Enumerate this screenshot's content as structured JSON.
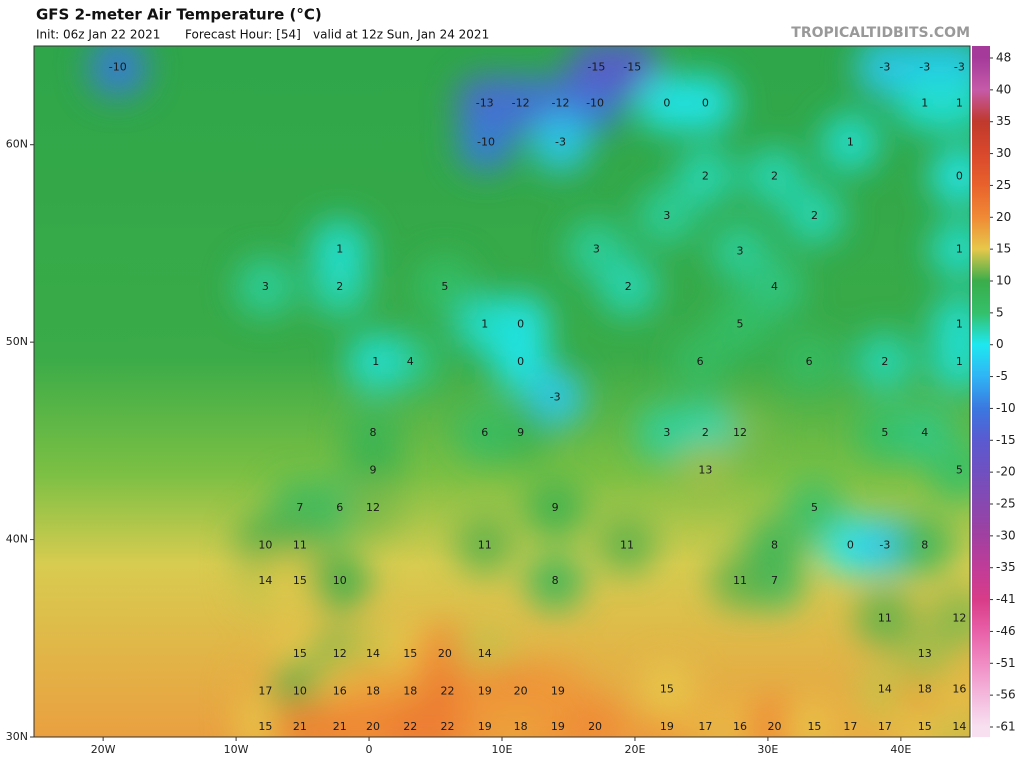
{
  "header": {
    "title": "GFS 2-meter Air Temperature (°C)",
    "init": "Init: 06z Jan 22 2021",
    "forecast_hour": "Forecast Hour: [54]",
    "valid": "valid at 12z Sun, Jan 24 2021",
    "site": "TROPICALTIDBITS.COM"
  },
  "map": {
    "xlim": [
      -25.2,
      45.2
    ],
    "ylim": [
      30,
      65
    ],
    "xticks": [
      {
        "value": -20,
        "label": "20W"
      },
      {
        "value": -10,
        "label": "10W"
      },
      0,
      {
        "value": 10,
        "label": "10E"
      },
      {
        "value": 20,
        "label": "20E"
      },
      {
        "value": 30,
        "label": "30E"
      },
      {
        "value": 40,
        "label": "40E"
      }
    ],
    "yticks": [
      {
        "value": 30,
        "label": "30N"
      },
      {
        "value": 40,
        "label": "40N"
      },
      {
        "value": 50,
        "label": "50N"
      },
      {
        "value": 60,
        "label": "60N"
      }
    ],
    "points": [
      {
        "lon": -18.9,
        "lat": 63.9,
        "value": -10
      },
      {
        "lon": 8.7,
        "lat": 62.1,
        "value": -13
      },
      {
        "lon": 11.4,
        "lat": 62.1,
        "value": -12
      },
      {
        "lon": 14.4,
        "lat": 62.1,
        "value": -12
      },
      {
        "lon": 17.0,
        "lat": 62.1,
        "value": -10
      },
      {
        "lon": 17.1,
        "lat": 63.9,
        "value": -15
      },
      {
        "lon": 19.8,
        "lat": 63.9,
        "value": -15
      },
      {
        "lon": 8.8,
        "lat": 60.1,
        "value": -10
      },
      {
        "lon": 14.4,
        "lat": 60.1,
        "value": -3
      },
      {
        "lon": 22.4,
        "lat": 62.1,
        "value": 0
      },
      {
        "lon": 25.3,
        "lat": 62.1,
        "value": 0
      },
      {
        "lon": 38.8,
        "lat": 63.9,
        "value": -3
      },
      {
        "lon": 41.8,
        "lat": 63.9,
        "value": -3
      },
      {
        "lon": 44.4,
        "lat": 63.9,
        "value": -3
      },
      {
        "lon": 41.8,
        "lat": 62.1,
        "value": 1
      },
      {
        "lon": 36.2,
        "lat": 60.1,
        "value": 1
      },
      {
        "lon": 30.5,
        "lat": 58.4,
        "value": 2
      },
      {
        "lon": 33.5,
        "lat": 56.4,
        "value": 2
      },
      {
        "lon": 27.9,
        "lat": 54.6,
        "value": 3
      },
      {
        "lon": 30.5,
        "lat": 52.8,
        "value": 4
      },
      {
        "lon": 27.9,
        "lat": 50.9,
        "value": 5
      },
      {
        "lon": 33.1,
        "lat": 49.0,
        "value": 6
      },
      {
        "lon": 38.8,
        "lat": 49.0,
        "value": 2
      },
      {
        "lon": 24.9,
        "lat": 49.0,
        "value": 6
      },
      {
        "lon": 17.1,
        "lat": 54.7,
        "value": 3
      },
      {
        "lon": 19.5,
        "lat": 52.8,
        "value": 2
      },
      {
        "lon": 11.4,
        "lat": 50.9,
        "value": 0
      },
      {
        "lon": 11.4,
        "lat": 49.0,
        "value": 0
      },
      {
        "lon": 14.0,
        "lat": 47.2,
        "value": -3
      },
      {
        "lon": 8.7,
        "lat": 50.9,
        "value": 1
      },
      {
        "lon": 5.7,
        "lat": 52.8,
        "value": 5
      },
      {
        "lon": 3.1,
        "lat": 49.0,
        "value": 4
      },
      {
        "lon": 0.5,
        "lat": 49.0,
        "value": 1
      },
      {
        "lon": 0.3,
        "lat": 45.4,
        "value": 8
      },
      {
        "lon": 0.3,
        "lat": 43.5,
        "value": 9
      },
      {
        "lon": -2.2,
        "lat": 41.6,
        "value": 6
      },
      {
        "lon": -5.2,
        "lat": 41.6,
        "value": 7
      },
      {
        "lon": -7.8,
        "lat": 39.7,
        "value": 10
      },
      {
        "lon": -5.2,
        "lat": 39.7,
        "value": 11
      },
      {
        "lon": -7.8,
        "lat": 37.9,
        "value": 14
      },
      {
        "lon": -5.2,
        "lat": 37.9,
        "value": 15
      },
      {
        "lon": -2.2,
        "lat": 37.9,
        "value": 10
      },
      {
        "lon": 0.3,
        "lat": 41.6,
        "value": 12
      },
      {
        "lon": -5.2,
        "lat": 34.2,
        "value": 15
      },
      {
        "lon": -2.2,
        "lat": 34.2,
        "value": 12
      },
      {
        "lon": 0.3,
        "lat": 34.2,
        "value": 14
      },
      {
        "lon": 3.1,
        "lat": 34.2,
        "value": 15
      },
      {
        "lon": 5.7,
        "lat": 34.2,
        "value": 20
      },
      {
        "lon": 8.7,
        "lat": 34.2,
        "value": 14
      },
      {
        "lon": -7.8,
        "lat": 32.3,
        "value": 17
      },
      {
        "lon": -5.2,
        "lat": 32.3,
        "value": 10
      },
      {
        "lon": -2.2,
        "lat": 32.3,
        "value": 16
      },
      {
        "lon": 0.3,
        "lat": 32.3,
        "value": 18
      },
      {
        "lon": 3.1,
        "lat": 32.3,
        "value": 18
      },
      {
        "lon": 5.9,
        "lat": 32.3,
        "value": 22
      },
      {
        "lon": 8.7,
        "lat": 32.3,
        "value": 19
      },
      {
        "lon": 11.4,
        "lat": 32.3,
        "value": 20
      },
      {
        "lon": 14.2,
        "lat": 32.3,
        "value": 19
      },
      {
        "lon": -7.8,
        "lat": 30.5,
        "value": 15
      },
      {
        "lon": -5.2,
        "lat": 30.5,
        "value": 21
      },
      {
        "lon": -2.2,
        "lat": 30.5,
        "value": 21
      },
      {
        "lon": 0.3,
        "lat": 30.5,
        "value": 20
      },
      {
        "lon": 3.1,
        "lat": 30.5,
        "value": 22
      },
      {
        "lon": 5.9,
        "lat": 30.5,
        "value": 22
      },
      {
        "lon": 8.7,
        "lat": 30.5,
        "value": 19
      },
      {
        "lon": 11.4,
        "lat": 30.5,
        "value": 18
      },
      {
        "lon": 14.2,
        "lat": 30.5,
        "value": 19
      },
      {
        "lon": 17.0,
        "lat": 30.5,
        "value": 20
      },
      {
        "lon": 22.4,
        "lat": 30.5,
        "value": 19
      },
      {
        "lon": 25.3,
        "lat": 30.5,
        "value": 17
      },
      {
        "lon": 27.9,
        "lat": 30.5,
        "value": 16
      },
      {
        "lon": 30.5,
        "lat": 30.5,
        "value": 20
      },
      {
        "lon": 33.5,
        "lat": 30.5,
        "value": 15
      },
      {
        "lon": 36.2,
        "lat": 30.5,
        "value": 17
      },
      {
        "lon": 38.8,
        "lat": 30.5,
        "value": 17
      },
      {
        "lon": 41.8,
        "lat": 30.5,
        "value": 15
      },
      {
        "lon": 44.4,
        "lat": 30.5,
        "value": 14
      },
      {
        "lon": 22.4,
        "lat": 32.4,
        "value": 15
      },
      {
        "lon": 38.8,
        "lat": 32.4,
        "value": 14
      },
      {
        "lon": 41.8,
        "lat": 32.4,
        "value": 18
      },
      {
        "lon": 44.4,
        "lat": 32.4,
        "value": 16
      },
      {
        "lon": 41.8,
        "lat": 34.2,
        "value": 13
      },
      {
        "lon": 38.8,
        "lat": 36.0,
        "value": 11
      },
      {
        "lon": 44.4,
        "lat": 36.0,
        "value": 12
      },
      {
        "lon": 30.5,
        "lat": 37.9,
        "value": 7
      },
      {
        "lon": 27.9,
        "lat": 37.9,
        "value": 11
      },
      {
        "lon": 36.2,
        "lat": 39.7,
        "value": 0
      },
      {
        "lon": 38.8,
        "lat": 39.7,
        "value": -3
      },
      {
        "lon": 41.8,
        "lat": 39.7,
        "value": 8
      },
      {
        "lon": 30.5,
        "lat": 39.7,
        "value": 8
      },
      {
        "lon": 33.5,
        "lat": 41.6,
        "value": 5
      },
      {
        "lon": 44.4,
        "lat": 43.5,
        "value": 5
      },
      {
        "lon": 38.8,
        "lat": 45.4,
        "value": 5
      },
      {
        "lon": 41.8,
        "lat": 45.4,
        "value": 4
      },
      {
        "lon": 27.9,
        "lat": 45.4,
        "value": 12
      },
      {
        "lon": 25.3,
        "lat": 45.4,
        "value": 2
      },
      {
        "lon": 22.4,
        "lat": 45.4,
        "value": 3
      },
      {
        "lon": 11.4,
        "lat": 45.4,
        "value": 9
      },
      {
        "lon": 8.7,
        "lat": 45.4,
        "value": 6
      },
      {
        "lon": 14.0,
        "lat": 37.9,
        "value": 8
      },
      {
        "lon": 19.4,
        "lat": 39.7,
        "value": 11
      },
      {
        "lon": 8.7,
        "lat": 39.7,
        "value": 11
      },
      {
        "lon": 14.0,
        "lat": 41.6,
        "value": 9
      },
      {
        "lon": 25.3,
        "lat": 43.5,
        "value": 13
      },
      {
        "lon": 44.4,
        "lat": 49.0,
        "value": 1
      },
      {
        "lon": 44.4,
        "lat": 50.9,
        "value": 1
      },
      {
        "lon": 44.4,
        "lat": 54.7,
        "value": 1
      },
      {
        "lon": 44.4,
        "lat": 58.4,
        "value": 0
      },
      {
        "lon": 44.4,
        "lat": 62.1,
        "value": 1
      },
      {
        "lon": -7.8,
        "lat": 52.8,
        "value": 3
      },
      {
        "lon": -2.2,
        "lat": 52.8,
        "value": 2
      },
      {
        "lon": -2.2,
        "lat": 54.7,
        "value": 1
      },
      {
        "lon": 25.3,
        "lat": 58.4,
        "value": 2
      },
      {
        "lon": 22.4,
        "lat": 56.4,
        "value": 3
      }
    ]
  },
  "colorbar": {
    "ticks": [
      48,
      40,
      35,
      30,
      25,
      20,
      15,
      10,
      5,
      0,
      -5,
      -10,
      -15,
      -20,
      -25,
      -30,
      -35,
      -41,
      -46,
      -51,
      -56,
      -61
    ],
    "colors": [
      "#a53a9b",
      "#c55aa8",
      "#c0392b",
      "#d9482c",
      "#e8622c",
      "#f08a35",
      "#e6c84a",
      "#3aad4a",
      "#34c06a",
      "#1ee8f0",
      "#2fb4f5",
      "#3a78e0",
      "#5a5ad0",
      "#7050c0",
      "#8848b0",
      "#a040a0",
      "#c03c98",
      "#d83c88",
      "#e860a8",
      "#f08cc4",
      "#f4b8dc",
      "#f8e0f0"
    ]
  }
}
